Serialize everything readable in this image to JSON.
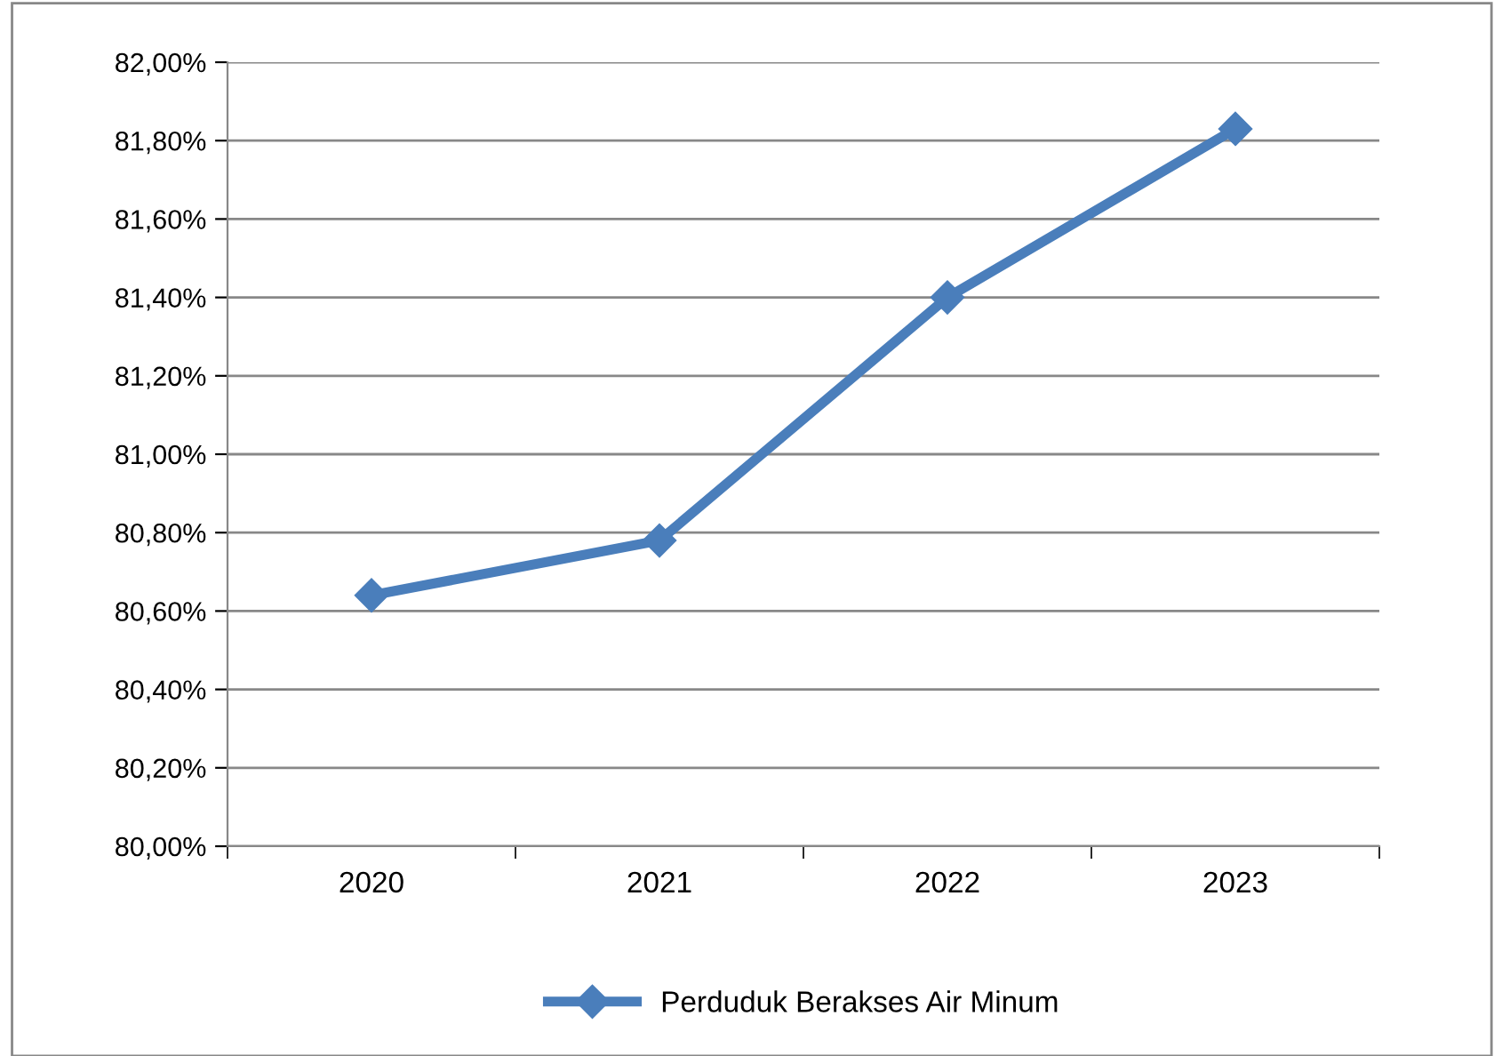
{
  "chart_data": {
    "type": "line",
    "categories": [
      "2020",
      "2021",
      "2022",
      "2023"
    ],
    "series": [
      {
        "name": "Perduduk Berakses Air Minum",
        "color": "#4a7ebb",
        "values": [
          80.64,
          80.78,
          81.4,
          81.83
        ]
      }
    ],
    "ylim": [
      80,
      82
    ],
    "yticks": [
      {
        "value": 80,
        "label": "80,00%"
      },
      {
        "value": 80.2,
        "label": "80,20%"
      },
      {
        "value": 80.4,
        "label": "80,40%"
      },
      {
        "value": 80.6,
        "label": "80,60%"
      },
      {
        "value": 80.8,
        "label": "80,80%"
      },
      {
        "value": 81,
        "label": "81,00%"
      },
      {
        "value": 81.2,
        "label": "81,20%"
      },
      {
        "value": 81.4,
        "label": "81,40%"
      },
      {
        "value": 81.6,
        "label": "81,60%"
      },
      {
        "value": 81.8,
        "label": "81,80%"
      },
      {
        "value": 82,
        "label": "82,00%"
      }
    ],
    "grid": "y",
    "legend": "bottom",
    "marker": "diamond",
    "line_style": "solid"
  }
}
